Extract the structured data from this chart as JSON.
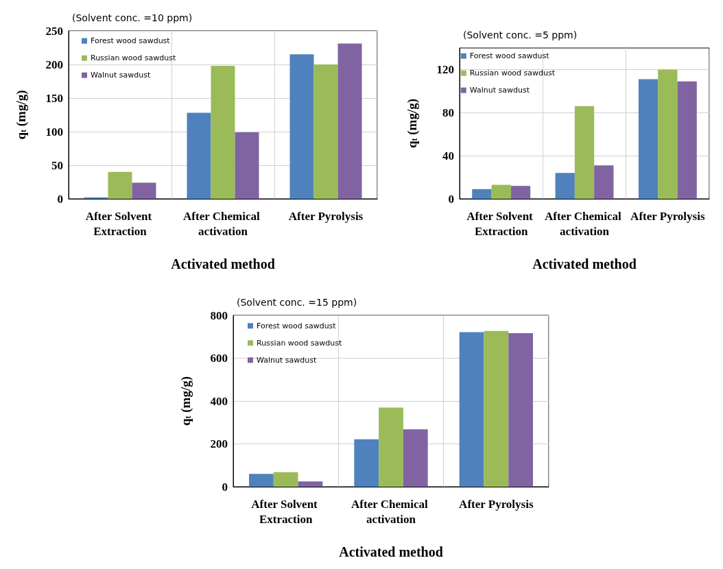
{
  "chart_data": [
    {
      "type": "bar",
      "title": "(Solvent conc. =10 ppm)",
      "xlabel": "Activated method",
      "ylabel": "q$_{t}$ (mg/g)",
      "categories": [
        "After Solvent Extraction",
        "After Chemical activation",
        "After Pyrolysis"
      ],
      "series": [
        {
          "name": "Forest wood sawdust",
          "color": "#4f81bd",
          "values": [
            2,
            128,
            215
          ]
        },
        {
          "name": "Russian wood sawdust",
          "color": "#9bbb59",
          "values": [
            40,
            198,
            200
          ]
        },
        {
          "name": "Walnut sawdust",
          "color": "#8064a2",
          "values": [
            24,
            99,
            231
          ]
        }
      ],
      "ylim": [
        0,
        250
      ],
      "yticks": [
        0,
        50,
        100,
        150,
        200,
        250
      ],
      "grid": true,
      "legend": "top left"
    },
    {
      "type": "bar",
      "title": "(Solvent conc. =5 ppm)",
      "xlabel": "Activated method",
      "ylabel": "q$_{t}$ (mg/g)",
      "categories": [
        "After Solvent Extraction",
        "After Chemical activation",
        "After Pyrolysis"
      ],
      "series": [
        {
          "name": "Forest wood sawdust",
          "color": "#4f81bd",
          "values": [
            9,
            24,
            111
          ]
        },
        {
          "name": "Russian wood sawdust",
          "color": "#9bbb59",
          "values": [
            13,
            86,
            120
          ]
        },
        {
          "name": "Walnut sawdust",
          "color": "#8064a2",
          "values": [
            12,
            31,
            109
          ]
        }
      ],
      "ylim": [
        0,
        140
      ],
      "yticks": [
        0,
        40,
        80,
        120
      ],
      "grid": true,
      "legend": "top left"
    },
    {
      "type": "bar",
      "title": "(Solvent conc. =15 ppm)",
      "xlabel": "Activated method",
      "ylabel": "q$_{t}$ (mg/g)",
      "categories": [
        "After Solvent Extraction",
        "After Chemical activation",
        "After Pyrolysis"
      ],
      "series": [
        {
          "name": "Forest wood sawdust",
          "color": "#4f81bd",
          "values": [
            60,
            222,
            722
          ]
        },
        {
          "name": "Russian wood sawdust",
          "color": "#9bbb59",
          "values": [
            68,
            370,
            727
          ]
        },
        {
          "name": "Walnut sawdust",
          "color": "#8064a2",
          "values": [
            25,
            268,
            717
          ]
        }
      ],
      "ylim": [
        0,
        800
      ],
      "yticks": [
        0,
        200,
        400,
        600,
        800
      ],
      "grid": true,
      "legend": "top left"
    }
  ]
}
